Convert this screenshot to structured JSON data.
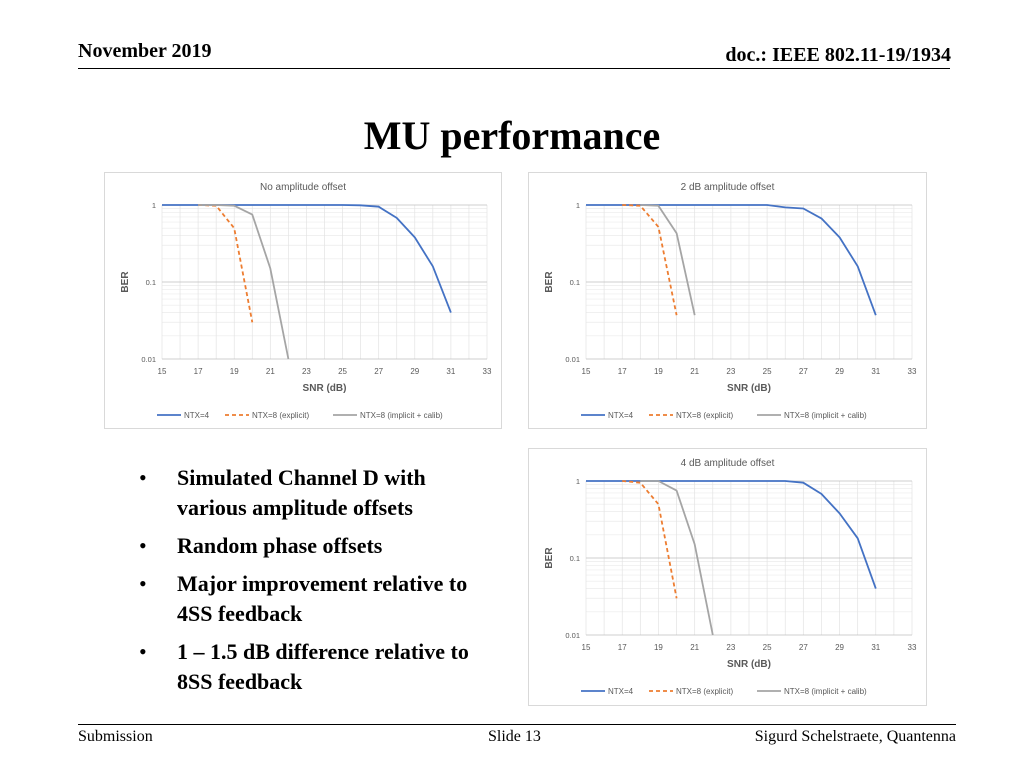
{
  "header": {
    "date": "November 2019",
    "doc": "doc.: IEEE 802.11-19/1934"
  },
  "title": "MU performance",
  "bullets": [
    "Simulated Channel D with various amplitude offsets",
    "Random phase offsets",
    "Major improvement relative to 4SS feedback",
    "1 – 1.5 dB difference relative to 8SS feedback"
  ],
  "footer": {
    "left": "Submission",
    "center": "Slide 13",
    "right": "Sigurd Schelstraete, Quantenna"
  },
  "colors": {
    "ntx4": "#4472c4",
    "ntx8_explicit": "#ed7d31",
    "ntx8_implicit": "#a5a5a5"
  },
  "chart_data": [
    {
      "type": "line",
      "title": "No amplitude offset",
      "xlabel": "SNR (dB)",
      "ylabel": "BER",
      "yscale": "log",
      "xlim": [
        15,
        33
      ],
      "ylim": [
        0.01,
        1
      ],
      "xticks": [
        "15",
        "17",
        "19",
        "21",
        "23",
        "25",
        "27",
        "29",
        "31",
        "33"
      ],
      "yticks": [
        "1",
        "0.1",
        "0.01"
      ],
      "grid": true,
      "legend": "bottom",
      "series": [
        {
          "name": "NTX=4",
          "style": "solid",
          "color": "#4472c4",
          "x": [
            15,
            16,
            17,
            18,
            19,
            20,
            21,
            22,
            23,
            24,
            25,
            26,
            27,
            28,
            29,
            30,
            31
          ],
          "y": [
            1,
            1,
            1,
            1,
            1,
            1,
            1,
            1,
            1,
            1,
            1,
            0.99,
            0.95,
            0.68,
            0.38,
            0.16,
            0.04
          ]
        },
        {
          "name": "NTX=8 (explicit)",
          "style": "dashed",
          "color": "#ed7d31",
          "x": [
            17,
            18,
            19,
            20
          ],
          "y": [
            1,
            0.98,
            0.5,
            0.03
          ]
        },
        {
          "name": "NTX=8 (implicit + calib)",
          "style": "solid",
          "color": "#a5a5a5",
          "x": [
            17,
            18,
            19,
            20,
            21,
            22
          ],
          "y": [
            1,
            1,
            0.98,
            0.75,
            0.15,
            0.01
          ]
        }
      ]
    },
    {
      "type": "line",
      "title": "2 dB amplitude offset",
      "xlabel": "SNR (dB)",
      "ylabel": "BER",
      "yscale": "log",
      "xlim": [
        15,
        33
      ],
      "ylim": [
        0.01,
        1
      ],
      "xticks": [
        "15",
        "17",
        "19",
        "21",
        "23",
        "25",
        "27",
        "29",
        "31",
        "33"
      ],
      "yticks": [
        "1",
        "0.1",
        "0.01"
      ],
      "grid": true,
      "legend": "bottom",
      "series": [
        {
          "name": "NTX=4",
          "style": "solid",
          "color": "#4472c4",
          "x": [
            15,
            16,
            17,
            18,
            19,
            20,
            21,
            22,
            23,
            24,
            25,
            26,
            27,
            28,
            29,
            30,
            31
          ],
          "y": [
            1,
            1,
            1,
            1,
            1,
            1,
            1,
            1,
            1,
            1,
            1,
            0.93,
            0.9,
            0.67,
            0.38,
            0.16,
            0.037
          ]
        },
        {
          "name": "NTX=8 (explicit)",
          "style": "dashed",
          "color": "#ed7d31",
          "x": [
            17,
            18,
            19,
            20
          ],
          "y": [
            1,
            0.98,
            0.52,
            0.037
          ]
        },
        {
          "name": "NTX=8 (implicit + calib)",
          "style": "solid",
          "color": "#a5a5a5",
          "x": [
            18,
            19,
            20,
            21
          ],
          "y": [
            1,
            0.98,
            0.43,
            0.037
          ]
        }
      ]
    },
    {
      "type": "line",
      "title": "4 dB amplitude offset",
      "xlabel": "SNR (dB)",
      "ylabel": "BER",
      "yscale": "log",
      "xlim": [
        15,
        33
      ],
      "ylim": [
        0.01,
        1
      ],
      "xticks": [
        "15",
        "17",
        "19",
        "21",
        "23",
        "25",
        "27",
        "29",
        "31",
        "33"
      ],
      "yticks": [
        "1",
        "0.1",
        "0.01"
      ],
      "grid": true,
      "legend": "bottom",
      "series": [
        {
          "name": "NTX=4",
          "style": "solid",
          "color": "#4472c4",
          "x": [
            15,
            16,
            17,
            18,
            19,
            20,
            21,
            22,
            23,
            24,
            25,
            26,
            27,
            28,
            29,
            30,
            31
          ],
          "y": [
            1,
            1,
            1,
            1,
            1,
            1,
            1,
            1,
            1,
            1,
            1,
            1,
            0.95,
            0.68,
            0.38,
            0.18,
            0.04
          ]
        },
        {
          "name": "NTX=8 (explicit)",
          "style": "dashed",
          "color": "#ed7d31",
          "x": [
            17,
            18,
            19,
            20
          ],
          "y": [
            1,
            0.95,
            0.5,
            0.03
          ]
        },
        {
          "name": "NTX=8 (implicit + calib)",
          "style": "solid",
          "color": "#a5a5a5",
          "x": [
            18,
            19,
            20,
            21,
            22
          ],
          "y": [
            1,
            1,
            0.75,
            0.15,
            0.01
          ]
        }
      ]
    }
  ]
}
